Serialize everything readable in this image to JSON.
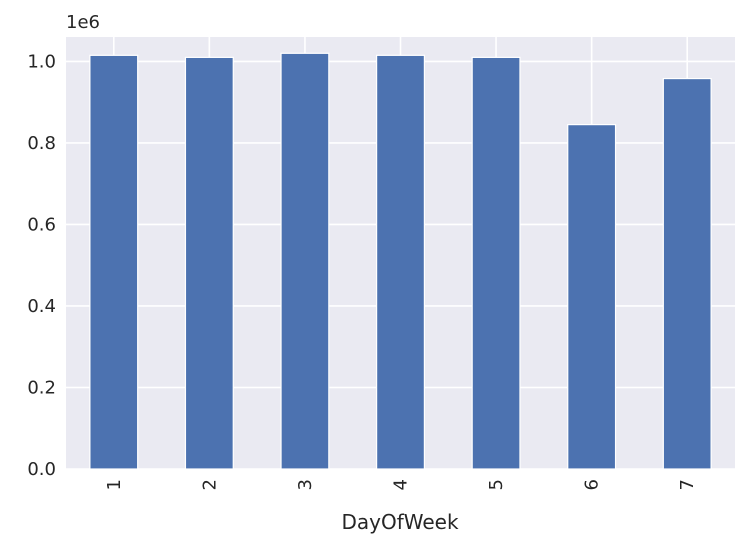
{
  "chart_data": {
    "type": "bar",
    "title": "",
    "xlabel": "DayOfWeek",
    "ylabel": "",
    "y_offset_label": "1e6",
    "categories": [
      "1",
      "2",
      "3",
      "4",
      "5",
      "6",
      "7"
    ],
    "values": [
      1015000,
      1010000,
      1020000,
      1015000,
      1010000,
      845000,
      958000
    ],
    "ylim": [
      0,
      1060000
    ],
    "yticks": [
      0,
      200000,
      400000,
      600000,
      800000,
      1000000
    ],
    "ytick_labels": [
      "0.0",
      "0.2",
      "0.4",
      "0.6",
      "0.8",
      "1.0"
    ],
    "xtick_rotation": "vertical",
    "grid": true,
    "legend": "none",
    "colors": {
      "bar": "#4c72b0",
      "plot_background": "#eaeaf2",
      "grid": "#ffffff",
      "text": "#262626"
    }
  }
}
